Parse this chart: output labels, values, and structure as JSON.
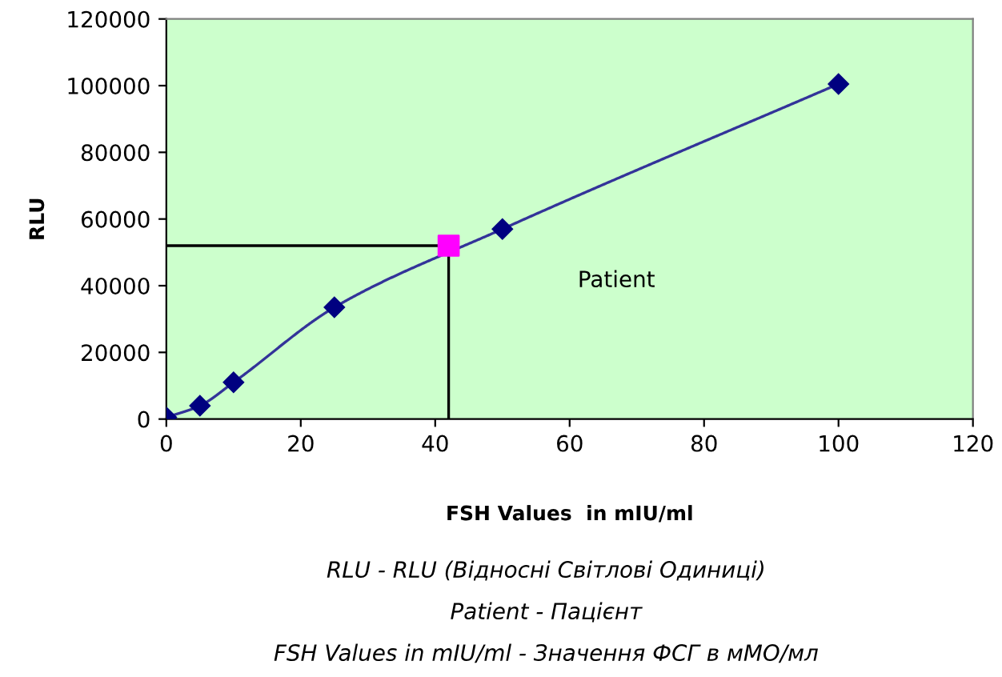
{
  "chart_data": {
    "type": "line",
    "xlabel": "FSH Values  in mIU/ml",
    "ylabel": "RLU",
    "xlim": [
      0,
      120
    ],
    "xticks": [
      0,
      20,
      40,
      60,
      80,
      100,
      120
    ],
    "ylim": [
      0,
      120000
    ],
    "yticks": [
      0,
      20000,
      40000,
      60000,
      80000,
      100000,
      120000
    ],
    "grid": false,
    "legend": false,
    "series": [
      {
        "color": "#000080",
        "marker": "diamond",
        "x": [
          0,
          5,
          10,
          25,
          50,
          100
        ],
        "values": [
          500,
          4000,
          11000,
          33500,
          57000,
          100500
        ]
      },
      {
        "type": "line",
        "color": "#000000",
        "marker": "none",
        "x": [
          0,
          42,
          42
        ],
        "values": [
          52000,
          52000,
          0
        ]
      },
      {
        "type": "scatter",
        "color": "#ff00ff",
        "marker": "square",
        "x": [
          42
        ],
        "values": [
          52000
        ]
      }
    ],
    "annotations": [
      "Patient",
      "RLU - RLU (Відносні Світлові Одиниці)",
      "Patient - Пацієнт",
      "FSH Values in mIU/ml - Значення ФСГ в мМО/мл"
    ]
  }
}
